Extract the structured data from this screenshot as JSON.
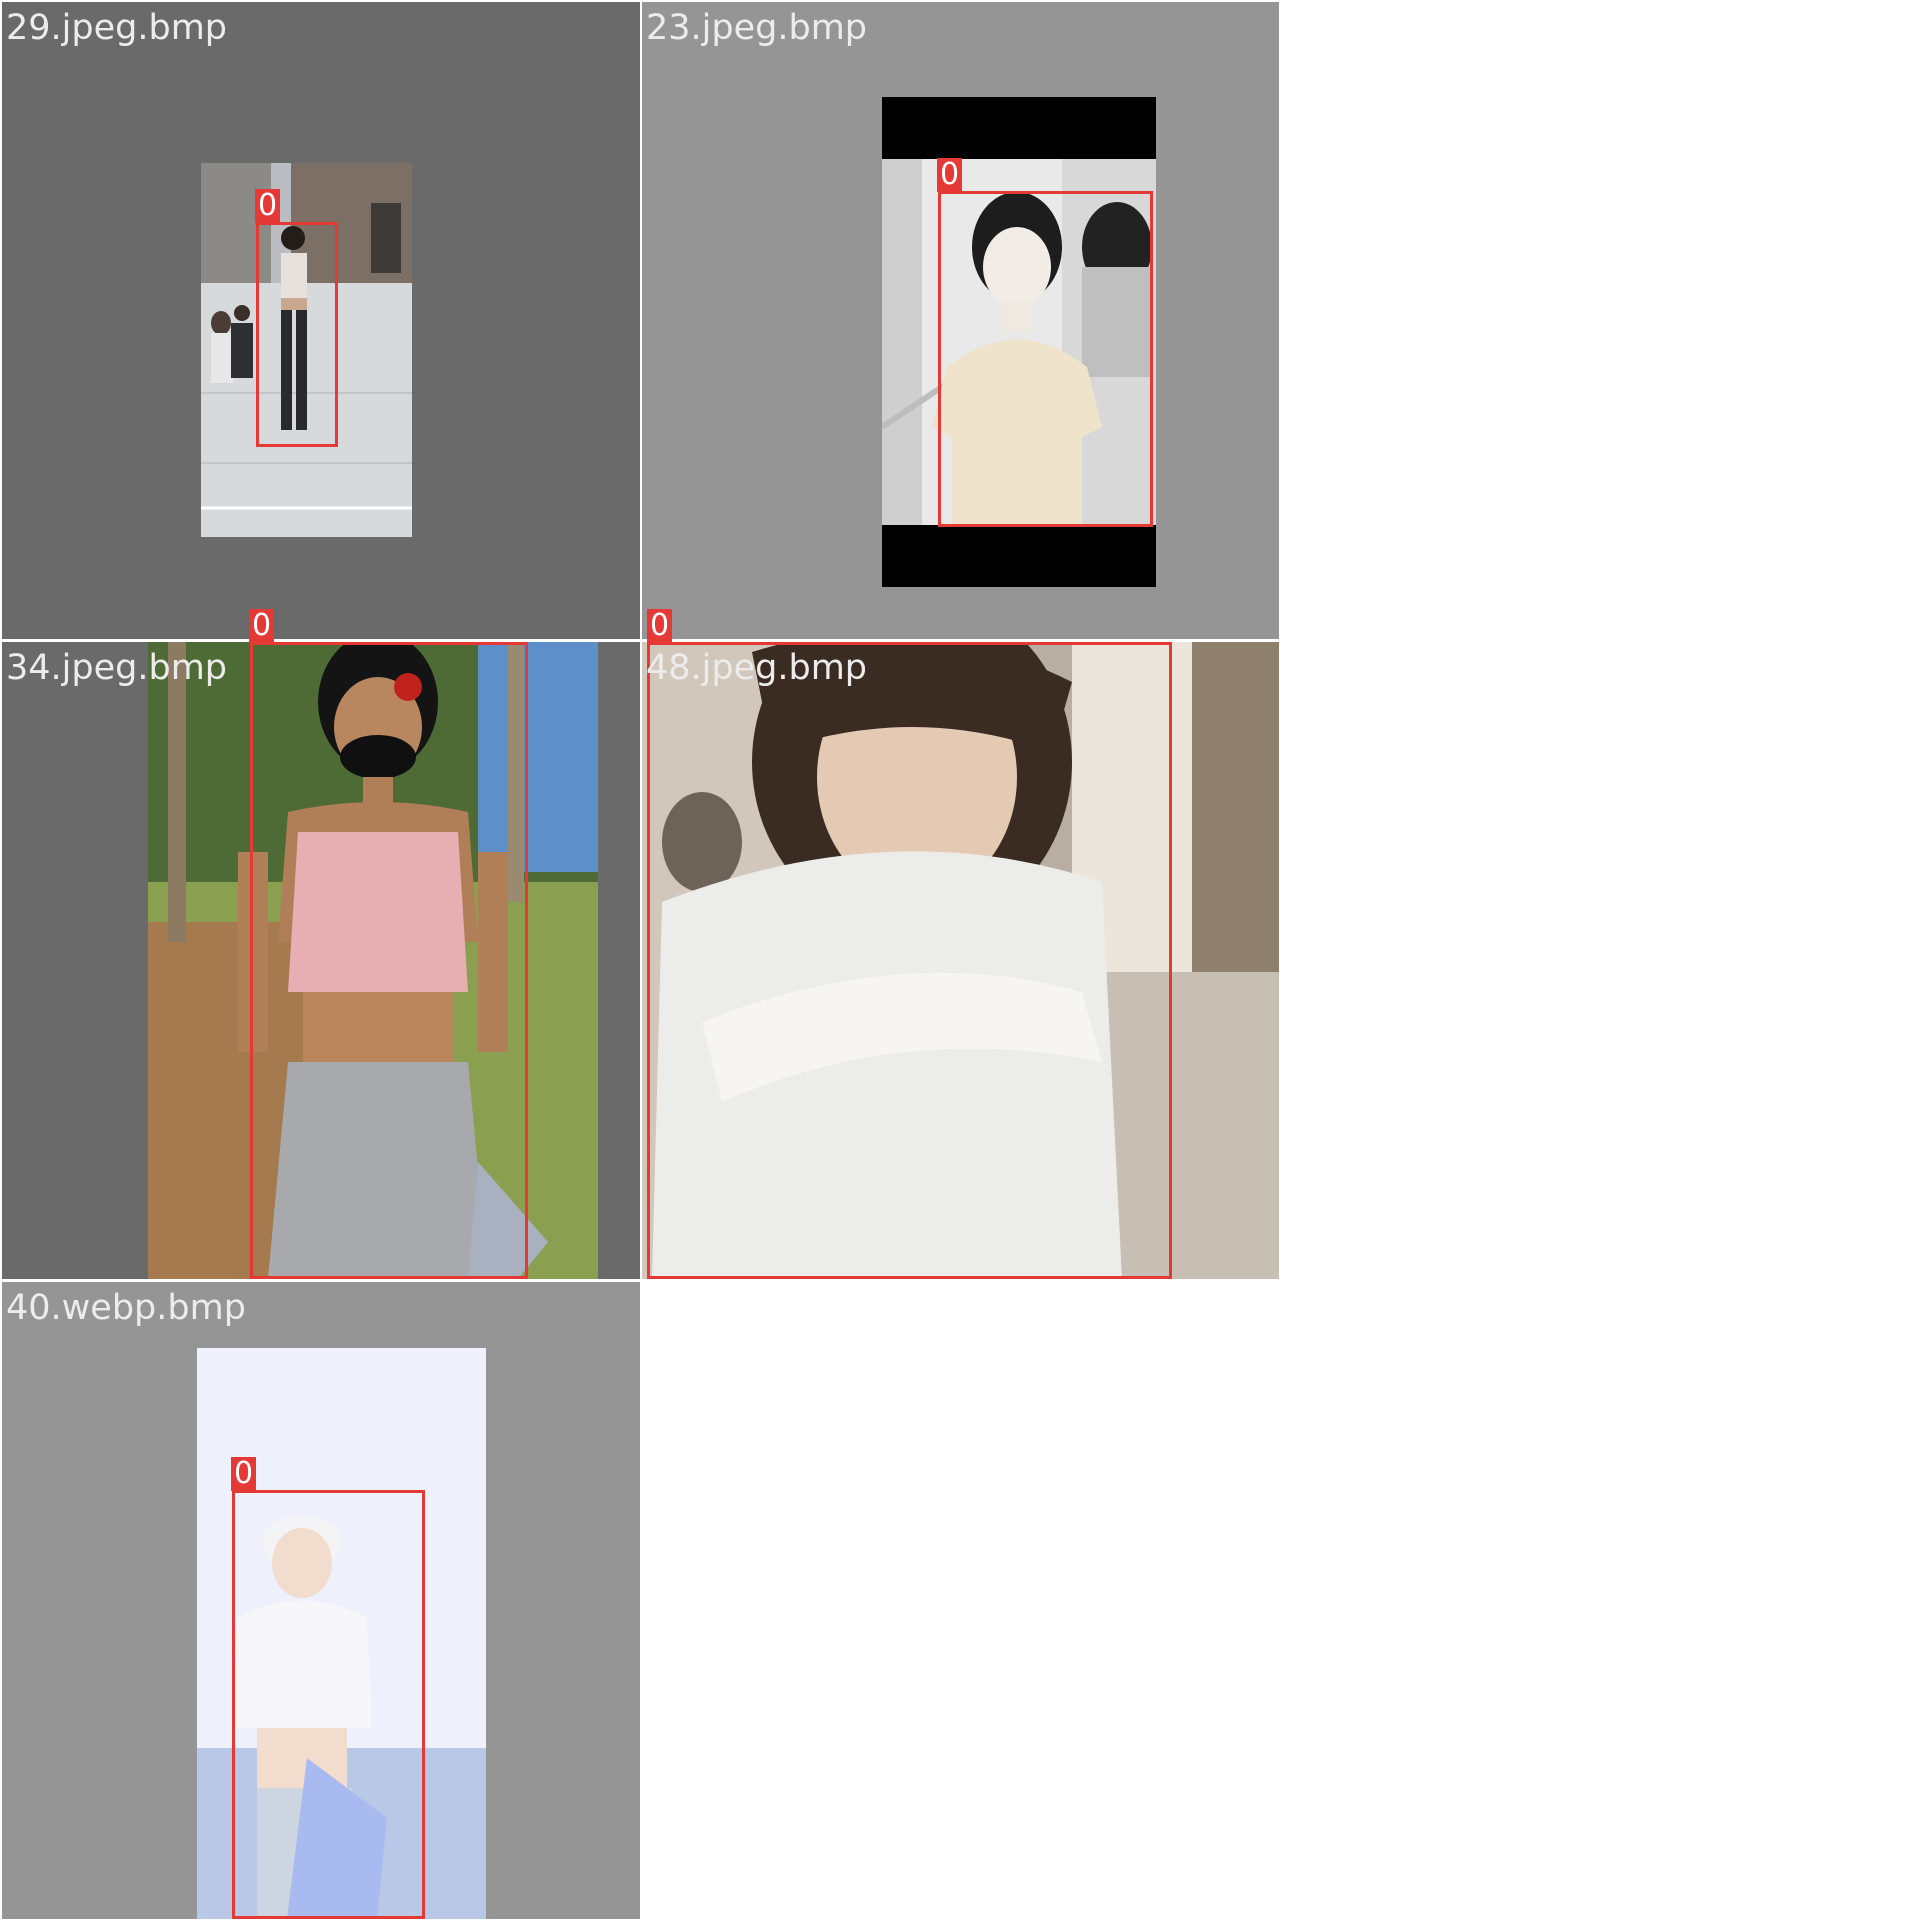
{
  "tiles": [
    {
      "filename": "29.jpeg.bmp",
      "detections": [
        {
          "class_id": "0"
        }
      ]
    },
    {
      "filename": "23.jpeg.bmp",
      "detections": [
        {
          "class_id": "0"
        }
      ]
    },
    {
      "filename": "34.jpeg.bmp",
      "detections": [
        {
          "class_id": "0"
        }
      ]
    },
    {
      "filename": "48.jpeg.bmp",
      "detections": [
        {
          "class_id": "0"
        }
      ]
    },
    {
      "filename": "40.webp.bmp",
      "detections": [
        {
          "class_id": "0"
        }
      ]
    }
  ],
  "colors": {
    "page_background": "#ffffff",
    "tile_background_dark": "#6a6a6a",
    "tile_background_light": "#959595",
    "box_color": "#e53935",
    "label_text": "#ececec"
  }
}
